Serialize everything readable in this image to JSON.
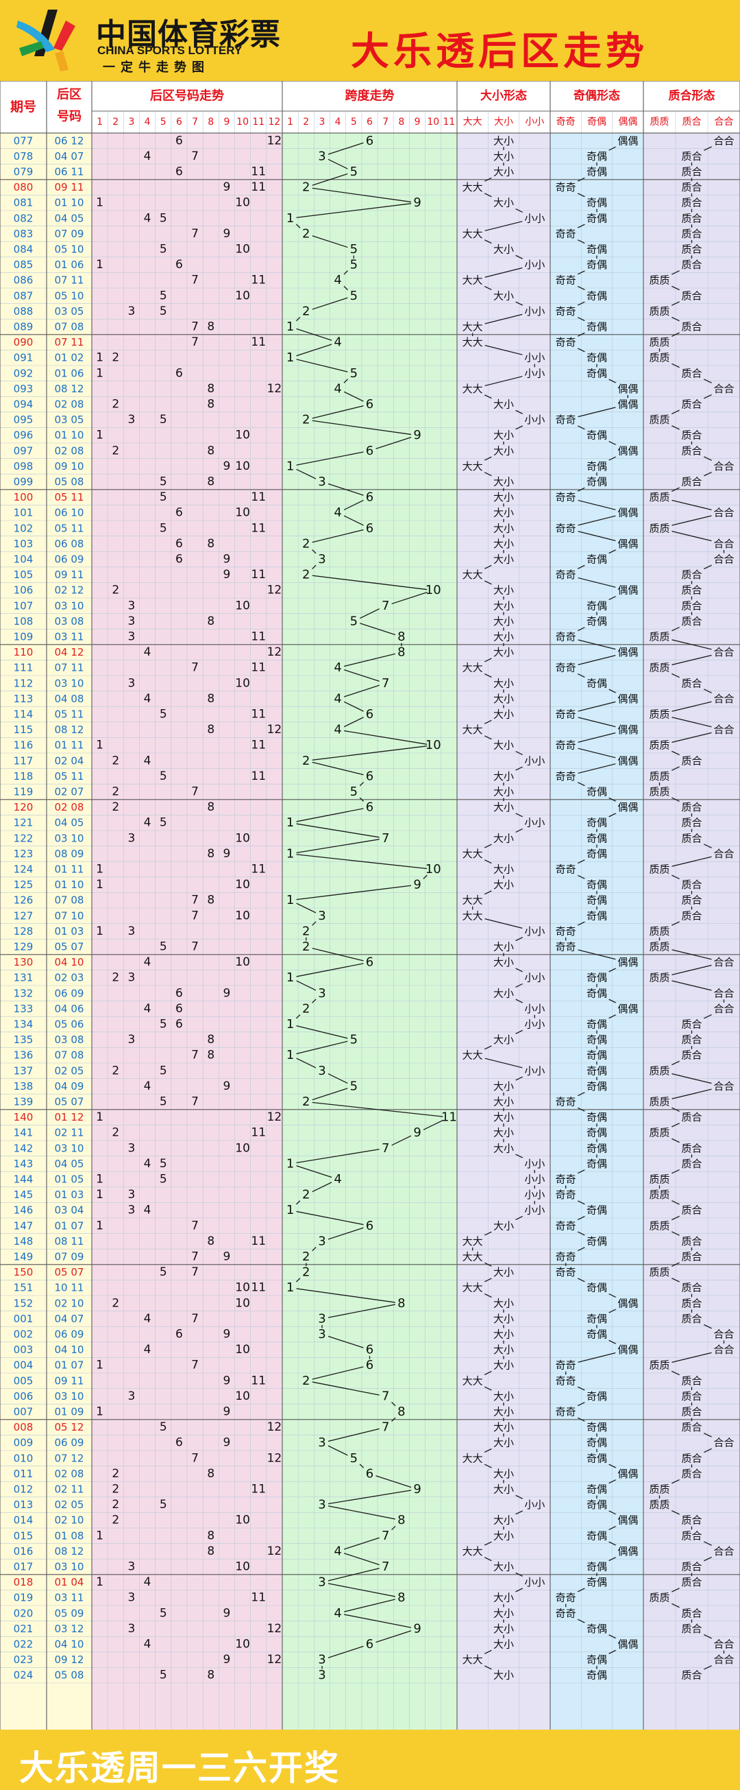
{
  "header": {
    "logo_cn": "中国体育彩票",
    "logo_en": "CHINA SPORTS LOTTERY",
    "logo_slogan": "一定牛走势图",
    "title": "大乐透后区走势"
  },
  "footer": {
    "text": "大乐透周一三六开奖"
  },
  "colors": {
    "header_bg": "#f7cd2e",
    "title_red": "#e6131b",
    "issue_blue": "#1a6fc8",
    "issue_red": "#e02020",
    "col_issue": "#fffbd8",
    "col_nums": "#f5dbe8",
    "col_span": "#d5f7d6",
    "col_size": "#e6e3f5",
    "col_parity": "#d2ecfb",
    "col_prime": "#e3e1f3"
  },
  "table": {
    "headers": {
      "issue": "期号",
      "numbers": "后区号码",
      "trend": "后区号码走势",
      "span": "跨度走势",
      "size": "大小形态",
      "parity": "奇偶形态",
      "prime": "质合形态"
    },
    "number_ticks": [
      "1",
      "2",
      "3",
      "4",
      "5",
      "6",
      "7",
      "8",
      "9",
      "10",
      "11",
      "12"
    ],
    "span_ticks": [
      "1",
      "2",
      "3",
      "4",
      "5",
      "6",
      "7",
      "8",
      "9",
      "10",
      "11"
    ],
    "size_labels": [
      "大大",
      "大小",
      "小小"
    ],
    "parity_labels": [
      "奇奇",
      "奇偶",
      "偶偶"
    ],
    "prime_labels": [
      "质质",
      "质合",
      "合合"
    ]
  },
  "chart_data": {
    "type": "table",
    "title": "大乐透后区走势",
    "columns": [
      "期号",
      "后区号码",
      "跨度",
      "大小形态",
      "奇偶形态",
      "质合形态"
    ],
    "rows": [
      [
        "077",
        "06 12"
      ],
      [
        "078",
        "04 07"
      ],
      [
        "079",
        "06 11"
      ],
      [
        "080",
        "09 11"
      ],
      [
        "081",
        "01 10"
      ],
      [
        "082",
        "04 05"
      ],
      [
        "083",
        "07 09"
      ],
      [
        "084",
        "05 10"
      ],
      [
        "085",
        "01 06"
      ],
      [
        "086",
        "07 11"
      ],
      [
        "087",
        "05 10"
      ],
      [
        "088",
        "03 05"
      ],
      [
        "089",
        "07 08"
      ],
      [
        "090",
        "07 11"
      ],
      [
        "091",
        "01 02"
      ],
      [
        "092",
        "01 06"
      ],
      [
        "093",
        "08 12"
      ],
      [
        "094",
        "02 08"
      ],
      [
        "095",
        "03 05"
      ],
      [
        "096",
        "01 10"
      ],
      [
        "097",
        "02 08"
      ],
      [
        "098",
        "09 10"
      ],
      [
        "099",
        "05 08"
      ],
      [
        "100",
        "05 11"
      ],
      [
        "101",
        "06 10"
      ],
      [
        "102",
        "05 11"
      ],
      [
        "103",
        "06 08"
      ],
      [
        "104",
        "06 09"
      ],
      [
        "105",
        "09 11"
      ],
      [
        "106",
        "02 12"
      ],
      [
        "107",
        "03 10"
      ],
      [
        "108",
        "03 08"
      ],
      [
        "109",
        "03 11"
      ],
      [
        "110",
        "04 12"
      ],
      [
        "111",
        "07 11"
      ],
      [
        "112",
        "03 10"
      ],
      [
        "113",
        "04 08"
      ],
      [
        "114",
        "05 11"
      ],
      [
        "115",
        "08 12"
      ],
      [
        "116",
        "01 11"
      ],
      [
        "117",
        "02 04"
      ],
      [
        "118",
        "05 11"
      ],
      [
        "119",
        "02 07"
      ],
      [
        "120",
        "02 08"
      ],
      [
        "121",
        "04 05"
      ],
      [
        "122",
        "03 10"
      ],
      [
        "123",
        "08 09"
      ],
      [
        "124",
        "01 11"
      ],
      [
        "125",
        "01 10"
      ],
      [
        "126",
        "07 08"
      ],
      [
        "127",
        "07 10"
      ],
      [
        "128",
        "01 03"
      ],
      [
        "129",
        "05 07"
      ],
      [
        "130",
        "04 10"
      ],
      [
        "131",
        "02 03"
      ],
      [
        "132",
        "06 09"
      ],
      [
        "133",
        "04 06"
      ],
      [
        "134",
        "05 06"
      ],
      [
        "135",
        "03 08"
      ],
      [
        "136",
        "07 08"
      ],
      [
        "137",
        "02 05"
      ],
      [
        "138",
        "04 09"
      ],
      [
        "139",
        "05 07"
      ],
      [
        "140",
        "01 12"
      ],
      [
        "141",
        "02 11"
      ],
      [
        "142",
        "03 10"
      ],
      [
        "143",
        "04 05"
      ],
      [
        "144",
        "01 05"
      ],
      [
        "145",
        "01 03"
      ],
      [
        "146",
        "03 04"
      ],
      [
        "147",
        "01 07"
      ],
      [
        "148",
        "08 11"
      ],
      [
        "149",
        "07 09"
      ],
      [
        "150",
        "05 07"
      ],
      [
        "151",
        "10 11"
      ],
      [
        "152",
        "02 10"
      ],
      [
        "001",
        "04 07"
      ],
      [
        "002",
        "06 09"
      ],
      [
        "003",
        "04 10"
      ],
      [
        "004",
        "01 07"
      ],
      [
        "005",
        "09 11"
      ],
      [
        "006",
        "03 10"
      ],
      [
        "007",
        "01 09"
      ],
      [
        "008",
        "05 12"
      ],
      [
        "009",
        "06 09"
      ],
      [
        "010",
        "07 12"
      ],
      [
        "011",
        "02 08"
      ],
      [
        "012",
        "02 11"
      ],
      [
        "013",
        "02 05"
      ],
      [
        "014",
        "02 10"
      ],
      [
        "015",
        "01 08"
      ],
      [
        "016",
        "08 12"
      ],
      [
        "017",
        "03 10"
      ],
      [
        "018",
        "01 04"
      ],
      [
        "019",
        "03 11"
      ],
      [
        "020",
        "05 09"
      ],
      [
        "021",
        "03 12"
      ],
      [
        "022",
        "04 10"
      ],
      [
        "023",
        "09 12"
      ],
      [
        "024",
        "05 08"
      ]
    ]
  }
}
